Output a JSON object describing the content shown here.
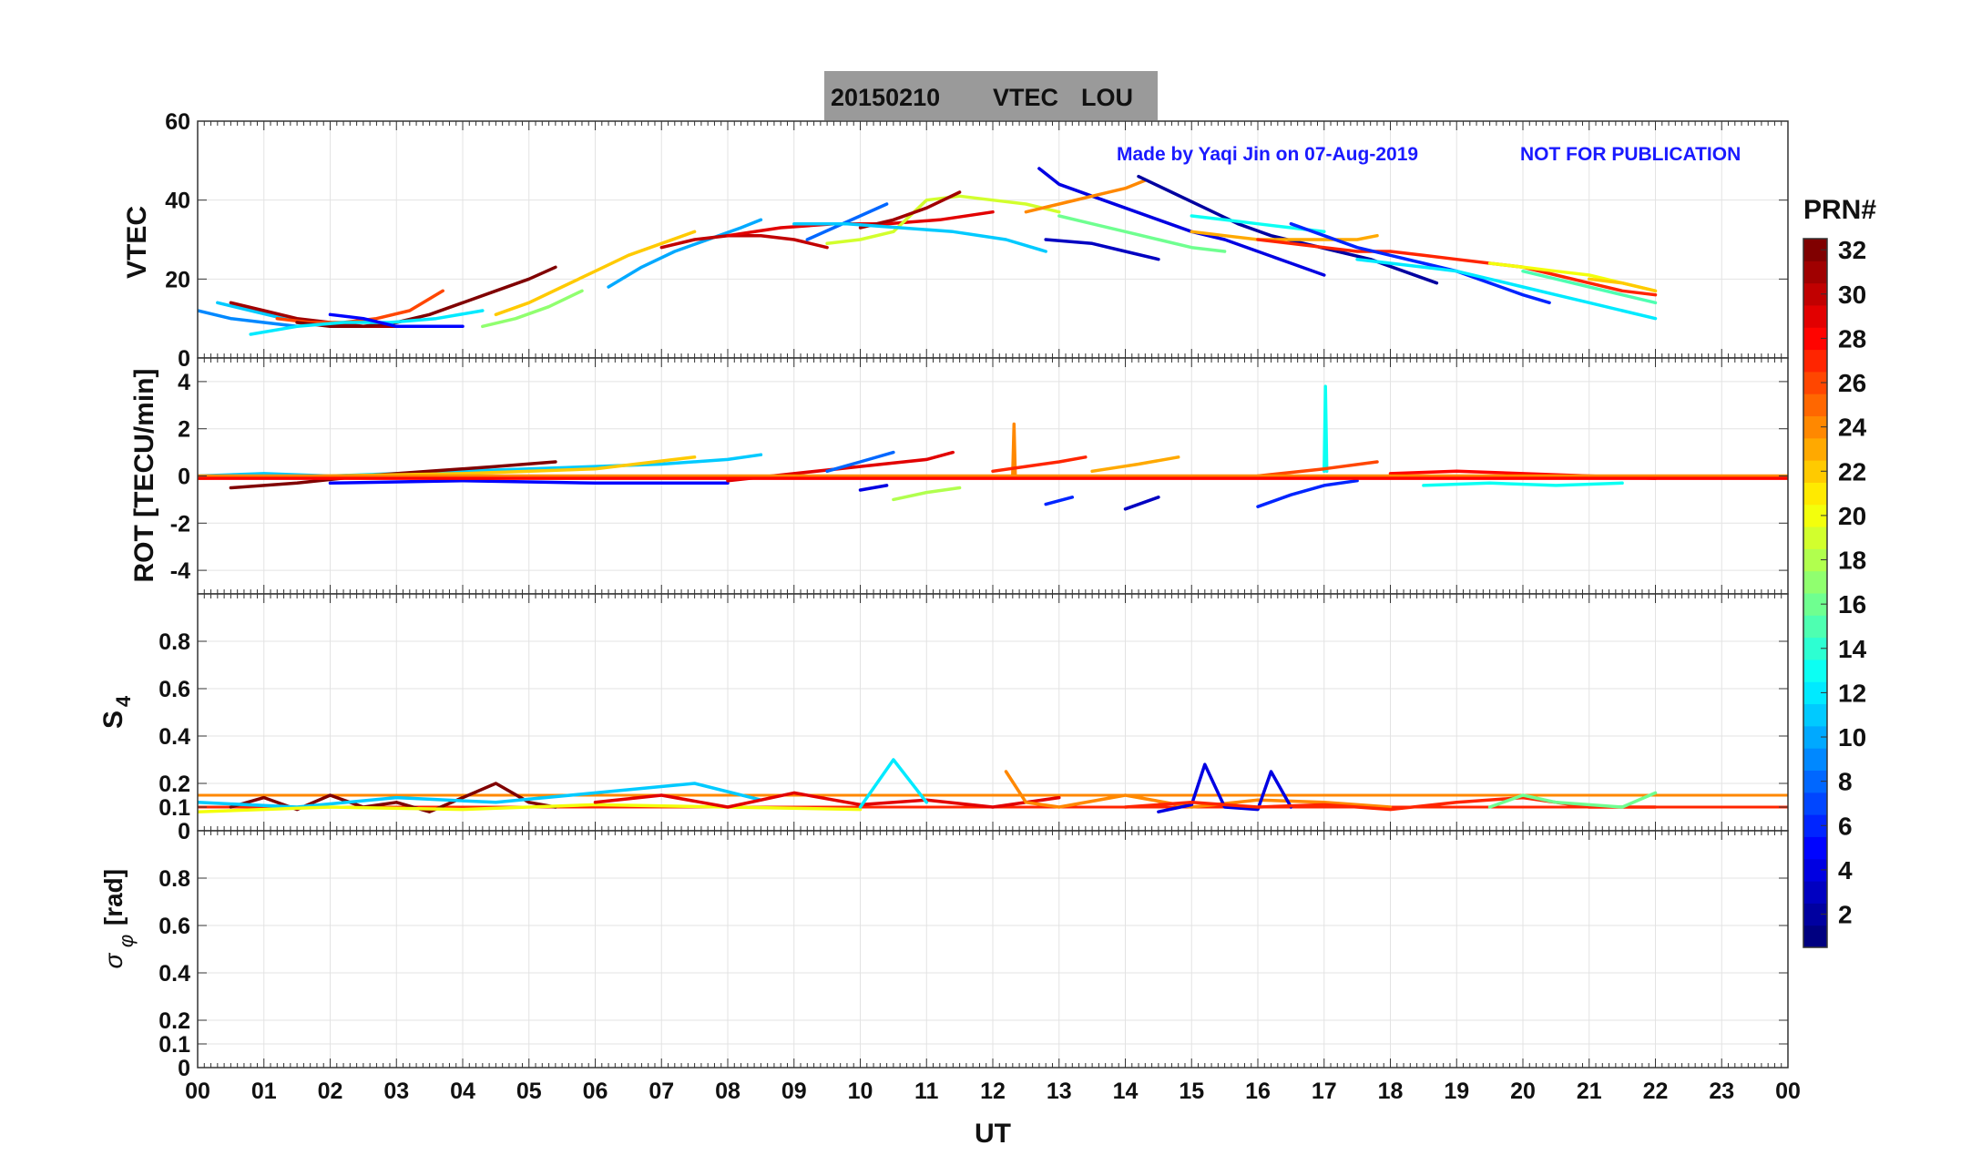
{
  "title_box": {
    "date": "20150210",
    "kind": "VTEC",
    "station": "LOU"
  },
  "watermark": {
    "made_by": "Made by Yaqi Jin on 07-Aug-2019",
    "notice": "NOT FOR PUBLICATION"
  },
  "colorbar": {
    "label": "PRN#",
    "ticks": [
      "2",
      "4",
      "6",
      "8",
      "10",
      "12",
      "14",
      "16",
      "18",
      "20",
      "22",
      "24",
      "26",
      "28",
      "30",
      "32"
    ],
    "min": 1,
    "max": 32
  },
  "xaxis": {
    "label": "UT",
    "ticks": [
      "00",
      "01",
      "02",
      "03",
      "04",
      "05",
      "06",
      "07",
      "08",
      "09",
      "10",
      "11",
      "12",
      "13",
      "14",
      "15",
      "16",
      "17",
      "18",
      "19",
      "20",
      "21",
      "22",
      "23",
      "00"
    ],
    "range": [
      0,
      24
    ]
  },
  "chart_data": [
    {
      "type": "line",
      "panel": "vtec",
      "ylabel": "VTEC",
      "ylim": [
        0,
        60
      ],
      "yticks": [
        "0",
        "20",
        "40",
        "60"
      ],
      "series": [
        {
          "prn": 9,
          "x": [
            0.0,
            0.5,
            1.0,
            1.5
          ],
          "y": [
            12,
            10,
            9,
            8
          ]
        },
        {
          "prn": 11,
          "x": [
            0.3,
            0.8,
            1.3,
            1.8
          ],
          "y": [
            14,
            12,
            10,
            9
          ]
        },
        {
          "prn": 31,
          "x": [
            0.5,
            1.0,
            1.5,
            2.0,
            2.5,
            3.0
          ],
          "y": [
            14,
            12,
            10,
            9,
            8,
            8
          ]
        },
        {
          "prn": 26,
          "x": [
            1.2,
            1.7,
            2.2,
            2.7,
            3.2,
            3.7
          ],
          "y": [
            10,
            9,
            9,
            10,
            12,
            17
          ]
        },
        {
          "prn": 32,
          "x": [
            1.5,
            2.0,
            2.5,
            3.0,
            3.5,
            4.0,
            4.5,
            5.0,
            5.4
          ],
          "y": [
            9,
            8,
            8,
            9,
            11,
            14,
            17,
            20,
            23
          ]
        },
        {
          "prn": 12,
          "x": [
            0.8,
            1.5,
            2.2,
            2.9,
            3.6,
            4.3
          ],
          "y": [
            6,
            8,
            9,
            9,
            10,
            12
          ]
        },
        {
          "prn": 5,
          "x": [
            2.0,
            2.5,
            3.0,
            3.5,
            4.0
          ],
          "y": [
            11,
            10,
            8,
            8,
            8
          ]
        },
        {
          "prn": 17,
          "x": [
            4.3,
            4.8,
            5.3,
            5.8
          ],
          "y": [
            8,
            10,
            13,
            17
          ]
        },
        {
          "prn": 22,
          "x": [
            4.5,
            5.0,
            5.5,
            6.0,
            6.5,
            7.0,
            7.5
          ],
          "y": [
            11,
            14,
            18,
            22,
            26,
            29,
            32
          ]
        },
        {
          "prn": 10,
          "x": [
            6.2,
            6.7,
            7.2,
            7.7,
            8.2,
            8.5
          ],
          "y": [
            18,
            23,
            27,
            30,
            33,
            35
          ]
        },
        {
          "prn": 30,
          "x": [
            7.0,
            7.5,
            8.0,
            8.5,
            9.0,
            9.5
          ],
          "y": [
            28,
            30,
            31,
            31,
            30,
            28
          ]
        },
        {
          "prn": 29,
          "x": [
            8.0,
            8.8,
            9.6,
            10.4,
            11.2,
            12.0
          ],
          "y": [
            31,
            33,
            34,
            34,
            35,
            37
          ]
        },
        {
          "prn": 8,
          "x": [
            9.2,
            9.6,
            10.0,
            10.4
          ],
          "y": [
            30,
            33,
            36,
            39
          ]
        },
        {
          "prn": 19,
          "x": [
            9.5,
            10.0,
            10.5,
            11.0,
            11.5,
            12.0,
            12.5,
            13.0
          ],
          "y": [
            29,
            30,
            32,
            40,
            41,
            40,
            39,
            37
          ]
        },
        {
          "prn": 31,
          "x": [
            10.0,
            10.5,
            11.0,
            11.5
          ],
          "y": [
            33,
            35,
            38,
            42
          ]
        },
        {
          "prn": 11,
          "x": [
            9.0,
            9.8,
            10.6,
            11.4,
            12.2,
            12.8
          ],
          "y": [
            34,
            34,
            33,
            32,
            30,
            27
          ]
        },
        {
          "prn": 4,
          "x": [
            12.7,
            13.0,
            13.5,
            14.0,
            14.5,
            15.0,
            15.5,
            16.0,
            16.5,
            17.0
          ],
          "y": [
            48,
            44,
            41,
            38,
            35,
            32,
            30,
            27,
            24,
            21
          ]
        },
        {
          "prn": 24,
          "x": [
            12.5,
            13.0,
            13.5,
            14.0,
            14.3
          ],
          "y": [
            37,
            39,
            41,
            43,
            45
          ]
        },
        {
          "prn": 3,
          "x": [
            12.8,
            13.5,
            14.0,
            14.5
          ],
          "y": [
            30,
            29,
            27,
            25
          ]
        },
        {
          "prn": 16,
          "x": [
            13.0,
            13.5,
            14.0,
            14.5,
            15.0,
            15.5
          ],
          "y": [
            36,
            34,
            32,
            30,
            28,
            27
          ]
        },
        {
          "prn": 2,
          "x": [
            14.2,
            14.7,
            15.2,
            15.7,
            16.2,
            16.7,
            17.2,
            17.7,
            18.2,
            18.7
          ],
          "y": [
            46,
            42,
            38,
            34,
            31,
            29,
            27,
            25,
            22,
            19
          ]
        },
        {
          "prn": 23,
          "x": [
            15.0,
            15.5,
            16.0,
            16.5,
            17.0,
            17.5,
            17.8
          ],
          "y": [
            32,
            31,
            30,
            30,
            30,
            30,
            31
          ]
        },
        {
          "prn": 13,
          "x": [
            15.0,
            15.5,
            16.0,
            16.5,
            17.0
          ],
          "y": [
            36,
            35,
            34,
            33,
            32
          ]
        },
        {
          "prn": 27,
          "x": [
            16.0,
            16.5,
            17.0,
            17.5,
            18.0,
            18.5,
            19.0,
            19.5,
            20.0,
            20.5,
            21.0,
            21.5,
            22.0
          ],
          "y": [
            30,
            29,
            28,
            27,
            27,
            26,
            25,
            24,
            23,
            21,
            19,
            17,
            16
          ]
        },
        {
          "prn": 6,
          "x": [
            16.5,
            17.0,
            17.5,
            18.0,
            18.5,
            19.0,
            19.5,
            20.0,
            20.4
          ],
          "y": [
            34,
            31,
            28,
            26,
            24,
            22,
            19,
            16,
            14
          ]
        },
        {
          "prn": 12,
          "x": [
            17.5,
            18.0,
            18.5,
            19.0,
            19.5,
            20.0,
            20.5,
            21.0,
            21.5,
            22.0
          ],
          "y": [
            25,
            24,
            23,
            22,
            20,
            18,
            16,
            14,
            12,
            10
          ]
        },
        {
          "prn": 20,
          "x": [
            19.5,
            20.0,
            20.5,
            21.0,
            21.5,
            22.0
          ],
          "y": [
            24,
            23,
            22,
            21,
            19,
            17
          ]
        },
        {
          "prn": 15,
          "x": [
            20.0,
            20.5,
            21.0,
            21.5,
            22.0
          ],
          "y": [
            22,
            20,
            18,
            16,
            14
          ]
        },
        {
          "prn": 22,
          "x": [
            21.0,
            21.5,
            22.0
          ],
          "y": [
            20,
            19,
            17
          ]
        }
      ]
    },
    {
      "type": "line",
      "panel": "rot",
      "ylabel": "ROT [TECU/min]",
      "ylim": [
        -5,
        5
      ],
      "yticks": [
        "-4",
        "-2",
        "0",
        "2",
        "4"
      ],
      "series": [
        {
          "prn": 11,
          "x": [
            0.0,
            1.0,
            2.0,
            3.0,
            4.0,
            5.0,
            6.0,
            7.0,
            8.0,
            8.5
          ],
          "y": [
            0.0,
            0.1,
            0.0,
            0.1,
            0.2,
            0.3,
            0.4,
            0.5,
            0.7,
            0.9
          ]
        },
        {
          "prn": 32,
          "x": [
            0.5,
            1.5,
            2.5,
            3.5,
            4.5,
            5.4
          ],
          "y": [
            -0.5,
            -0.3,
            0.0,
            0.2,
            0.4,
            0.6
          ]
        },
        {
          "prn": 22,
          "x": [
            0.0,
            2.0,
            4.0,
            6.0,
            7.5
          ],
          "y": [
            -0.1,
            0.0,
            0.1,
            0.3,
            0.8
          ]
        },
        {
          "prn": 5,
          "x": [
            2.0,
            4.0,
            6.0,
            8.0
          ],
          "y": [
            -0.3,
            -0.2,
            -0.3,
            -0.3
          ]
        },
        {
          "prn": 29,
          "x": [
            8.0,
            9.0,
            10.0,
            11.0,
            11.4
          ],
          "y": [
            -0.2,
            0.1,
            0.4,
            0.7,
            1.0
          ]
        },
        {
          "prn": 8,
          "x": [
            9.5,
            10.0,
            10.5
          ],
          "y": [
            0.2,
            0.6,
            1.0
          ]
        },
        {
          "prn": 4,
          "x": [
            10.0,
            10.4
          ],
          "y": [
            -0.6,
            -0.4
          ]
        },
        {
          "prn": 18,
          "x": [
            10.5,
            11.0,
            11.5
          ],
          "y": [
            -1.0,
            -0.7,
            -0.5
          ]
        },
        {
          "prn": 24,
          "x": [
            12.3,
            12.32,
            12.34
          ],
          "y": [
            0.0,
            2.2,
            0.0
          ]
        },
        {
          "prn": 27,
          "x": [
            12.0,
            12.5,
            13.0,
            13.4
          ],
          "y": [
            0.2,
            0.4,
            0.6,
            0.8
          ]
        },
        {
          "prn": 6,
          "x": [
            12.8,
            13.2
          ],
          "y": [
            -1.2,
            -0.9
          ]
        },
        {
          "prn": 3,
          "x": [
            14.0,
            14.5
          ],
          "y": [
            -1.4,
            -0.9
          ]
        },
        {
          "prn": 23,
          "x": [
            13.5,
            14.2,
            14.8
          ],
          "y": [
            0.2,
            0.5,
            0.8
          ]
        },
        {
          "prn": 6,
          "x": [
            16.0,
            16.5,
            17.0,
            17.5
          ],
          "y": [
            -1.3,
            -0.8,
            -0.4,
            -0.2
          ]
        },
        {
          "prn": 13,
          "x": [
            17.0,
            17.02,
            17.04
          ],
          "y": [
            0.2,
            3.8,
            0.2
          ]
        },
        {
          "prn": 26,
          "x": [
            16.0,
            17.0,
            17.8
          ],
          "y": [
            0.0,
            0.3,
            0.6
          ]
        },
        {
          "prn": 28,
          "x": [
            18.0,
            19.0,
            20.0,
            21.0,
            22.0
          ],
          "y": [
            0.1,
            0.2,
            0.1,
            0.0,
            -0.1
          ]
        },
        {
          "prn": 13,
          "x": [
            18.5,
            19.5,
            20.5,
            21.5
          ],
          "y": [
            -0.4,
            -0.3,
            -0.4,
            -0.3
          ]
        },
        {
          "prn": 24,
          "x": [
            0.0,
            24.0
          ],
          "y": [
            0.0,
            0.0
          ]
        },
        {
          "prn": 28,
          "x": [
            0.0,
            24.0
          ],
          "y": [
            -0.1,
            -0.1
          ]
        }
      ]
    },
    {
      "type": "line",
      "panel": "s4",
      "ylabel": "S4",
      "ylim": [
        0,
        1
      ],
      "yticks": [
        "0",
        "0.1",
        "0.2",
        "0.4",
        "0.6",
        "0.8"
      ],
      "reference_lines": [
        {
          "prn": 24,
          "y": 0.15
        },
        {
          "prn": 27,
          "y": 0.1
        }
      ],
      "series": [
        {
          "prn": 32,
          "x": [
            0.5,
            1.0,
            1.5,
            2.0,
            2.5,
            3.0,
            3.5,
            4.0,
            4.5,
            5.0,
            5.4
          ],
          "y": [
            0.1,
            0.14,
            0.09,
            0.15,
            0.1,
            0.12,
            0.08,
            0.14,
            0.2,
            0.12,
            0.1
          ]
        },
        {
          "prn": 11,
          "x": [
            0.0,
            1.5,
            3.0,
            4.5,
            6.0,
            7.5,
            8.5
          ],
          "y": [
            0.12,
            0.1,
            0.14,
            0.12,
            0.16,
            0.2,
            0.13
          ]
        },
        {
          "prn": 20,
          "x": [
            0.0,
            2.0,
            4.0,
            6.0,
            8.0,
            10.0
          ],
          "y": [
            0.08,
            0.1,
            0.09,
            0.11,
            0.1,
            0.09
          ]
        },
        {
          "prn": 29,
          "x": [
            6.0,
            7.0,
            8.0,
            9.0,
            10.0,
            11.0,
            12.0,
            13.0
          ],
          "y": [
            0.12,
            0.15,
            0.1,
            0.16,
            0.11,
            0.13,
            0.1,
            0.14
          ]
        },
        {
          "prn": 12,
          "x": [
            10.0,
            10.5,
            11.0
          ],
          "y": [
            0.1,
            0.3,
            0.12
          ]
        },
        {
          "prn": 24,
          "x": [
            12.2,
            12.5,
            13.0,
            14.0,
            15.0,
            16.0,
            17.0,
            18.0
          ],
          "y": [
            0.25,
            0.12,
            0.1,
            0.15,
            0.1,
            0.13,
            0.12,
            0.1
          ]
        },
        {
          "prn": 4,
          "x": [
            14.5,
            15.0,
            15.2,
            15.5,
            16.0,
            16.2,
            16.5
          ],
          "y": [
            0.08,
            0.11,
            0.28,
            0.1,
            0.09,
            0.25,
            0.1
          ]
        },
        {
          "prn": 27,
          "x": [
            14.0,
            15.0,
            16.0,
            17.0,
            18.0,
            19.0,
            20.0,
            21.0,
            22.0
          ],
          "y": [
            0.1,
            0.12,
            0.1,
            0.11,
            0.09,
            0.12,
            0.14,
            0.1,
            0.1
          ]
        },
        {
          "prn": 16,
          "x": [
            19.5,
            20.0,
            20.5,
            21.5,
            22.0
          ],
          "y": [
            0.1,
            0.15,
            0.12,
            0.1,
            0.16
          ]
        }
      ]
    },
    {
      "type": "line",
      "panel": "sigma_phi",
      "ylabel": "σφ [rad]",
      "ylim": [
        0,
        1
      ],
      "yticks": [
        "0",
        "0.1",
        "0.2",
        "0.4",
        "0.6",
        "0.8"
      ],
      "series": []
    }
  ],
  "ylabel_parts": {
    "vtec": "VTEC",
    "rot": "ROT [TECU/min]",
    "s4_main": "S",
    "s4_sub": "4",
    "sigma_main": "σ",
    "sigma_sub": "φ",
    "sigma_unit": "[rad]"
  }
}
